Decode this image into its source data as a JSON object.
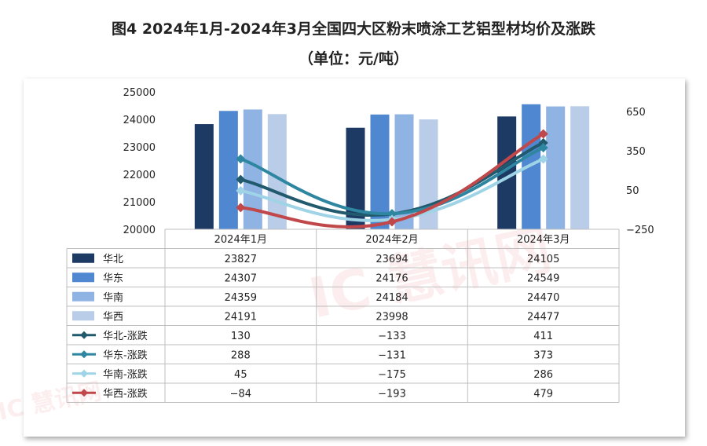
{
  "title_line1": "图4 2024年1月-2024年3月全国四大区粉末喷涂工艺铝型材均价及涨跌",
  "title_line2": "（单位：元/吨）",
  "watermark": "IC 慧讯网",
  "chart_data": {
    "type": "bar",
    "categories": [
      "2024年1月",
      "2024年2月",
      "2024年3月"
    ],
    "left_axis": {
      "ylim": [
        20000,
        25000
      ],
      "ticks": [
        20000,
        21000,
        22000,
        23000,
        24000,
        25000
      ]
    },
    "right_axis": {
      "ylim": [
        -250,
        800
      ],
      "ticks": [
        -250,
        50,
        350,
        650
      ]
    },
    "bar_series": [
      {
        "name": "华北",
        "values": [
          23827,
          23694,
          24105
        ],
        "color": "#1c3a63"
      },
      {
        "name": "华东",
        "values": [
          24307,
          24176,
          24549
        ],
        "color": "#4f87d1"
      },
      {
        "name": "华南",
        "values": [
          24359,
          24184,
          24470
        ],
        "color": "#8fb3e3"
      },
      {
        "name": "华西",
        "values": [
          24191,
          23998,
          24477
        ],
        "color": "#b9cde8"
      }
    ],
    "line_series": [
      {
        "name": "华北-涨跌",
        "values": [
          130,
          -133,
          411
        ],
        "color": "#215a6d"
      },
      {
        "name": "华东-涨跌",
        "values": [
          288,
          -131,
          373
        ],
        "color": "#2e86a0"
      },
      {
        "name": "华南-涨跌",
        "values": [
          45,
          -175,
          286
        ],
        "color": "#9fd3e6"
      },
      {
        "name": "华西-涨跌",
        "values": [
          -84,
          -193,
          479
        ],
        "color": "#c0474a"
      }
    ],
    "right_tick_labels": [
      "−250",
      "50",
      "350",
      "650"
    ],
    "line_value_labels": [
      [
        "130",
        "−133",
        "411"
      ],
      [
        "288",
        "−131",
        "373"
      ],
      [
        "45",
        "−175",
        "286"
      ],
      [
        "−84",
        "−193",
        "479"
      ]
    ],
    "legend": "data-table"
  }
}
